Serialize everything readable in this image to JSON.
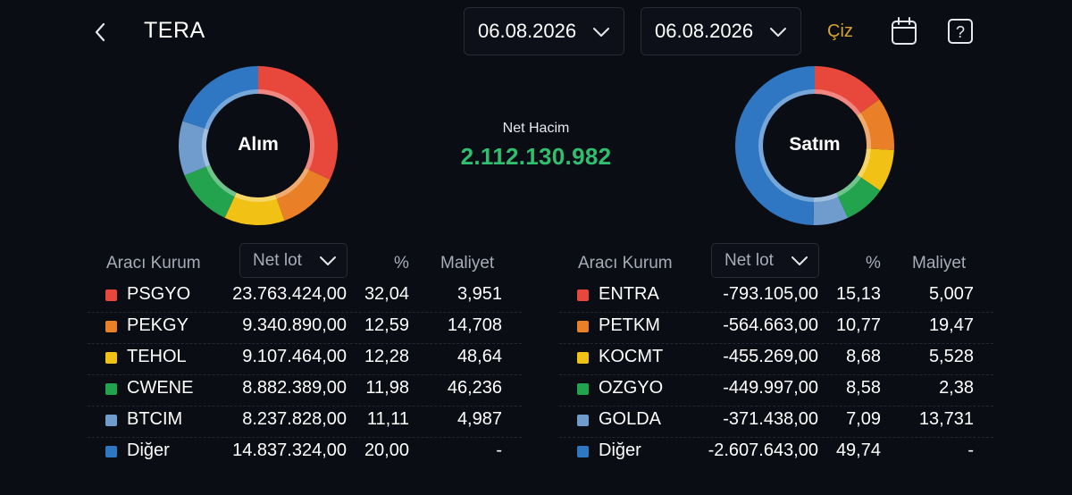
{
  "header": {
    "title": "TERA",
    "date_from": "06.08.2026",
    "date_to": "06.08.2026",
    "draw_label": "Çiz"
  },
  "summary": {
    "net_label": "Net Hacim",
    "net_value": "2.112.130.982"
  },
  "colors": {
    "red": "#e8473c",
    "orange": "#e97f26",
    "yellow": "#f1c116",
    "green": "#23a34e",
    "lightblue": "#6f9ccd",
    "blue": "#2f77c3",
    "net_green": "#2fbf71",
    "accent": "#d6a430"
  },
  "buy": {
    "label": "Alım",
    "columns": [
      "Aracı Kurum",
      "Net lot",
      "%",
      "Maliyet"
    ],
    "rows": [
      {
        "name": "PSGYO",
        "lot": "23.763.424,00",
        "pct": "32,04",
        "cost": "3,951",
        "color": "#e8473c",
        "share": 32.04
      },
      {
        "name": "PEKGY",
        "lot": "9.340.890,00",
        "pct": "12,59",
        "cost": "14,708",
        "color": "#e97f26",
        "share": 12.59
      },
      {
        "name": "TEHOL",
        "lot": "9.107.464,00",
        "pct": "12,28",
        "cost": "48,64",
        "color": "#f1c116",
        "share": 12.28
      },
      {
        "name": "CWENE",
        "lot": "8.882.389,00",
        "pct": "11,98",
        "cost": "46,236",
        "color": "#23a34e",
        "share": 11.98
      },
      {
        "name": "BTCIM",
        "lot": "8.237.828,00",
        "pct": "11,11",
        "cost": "4,987",
        "color": "#6f9ccd",
        "share": 11.11
      },
      {
        "name": "Diğer",
        "lot": "14.837.324,00",
        "pct": "20,00",
        "cost": "-",
        "color": "#2f77c3",
        "share": 20.0
      }
    ]
  },
  "sell": {
    "label": "Satım",
    "columns": [
      "Aracı Kurum",
      "Net lot",
      "%",
      "Maliyet"
    ],
    "rows": [
      {
        "name": "ENTRA",
        "lot": "-793.105,00",
        "pct": "15,13",
        "cost": "5,007",
        "color": "#e8473c",
        "share": 15.13
      },
      {
        "name": "PETKM",
        "lot": "-564.663,00",
        "pct": "10,77",
        "cost": "19,47",
        "color": "#e97f26",
        "share": 10.77
      },
      {
        "name": "KOCMT",
        "lot": "-455.269,00",
        "pct": "8,68",
        "cost": "5,528",
        "color": "#f1c116",
        "share": 8.68
      },
      {
        "name": "OZGYO",
        "lot": "-449.997,00",
        "pct": "8,58",
        "cost": "2,38",
        "color": "#23a34e",
        "share": 8.58
      },
      {
        "name": "GOLDA",
        "lot": "-371.438,00",
        "pct": "7,09",
        "cost": "13,731",
        "color": "#6f9ccd",
        "share": 7.09
      },
      {
        "name": "Diğer",
        "lot": "-2.607.643,00",
        "pct": "49,74",
        "cost": "-",
        "color": "#2f77c3",
        "share": 49.74
      }
    ]
  }
}
